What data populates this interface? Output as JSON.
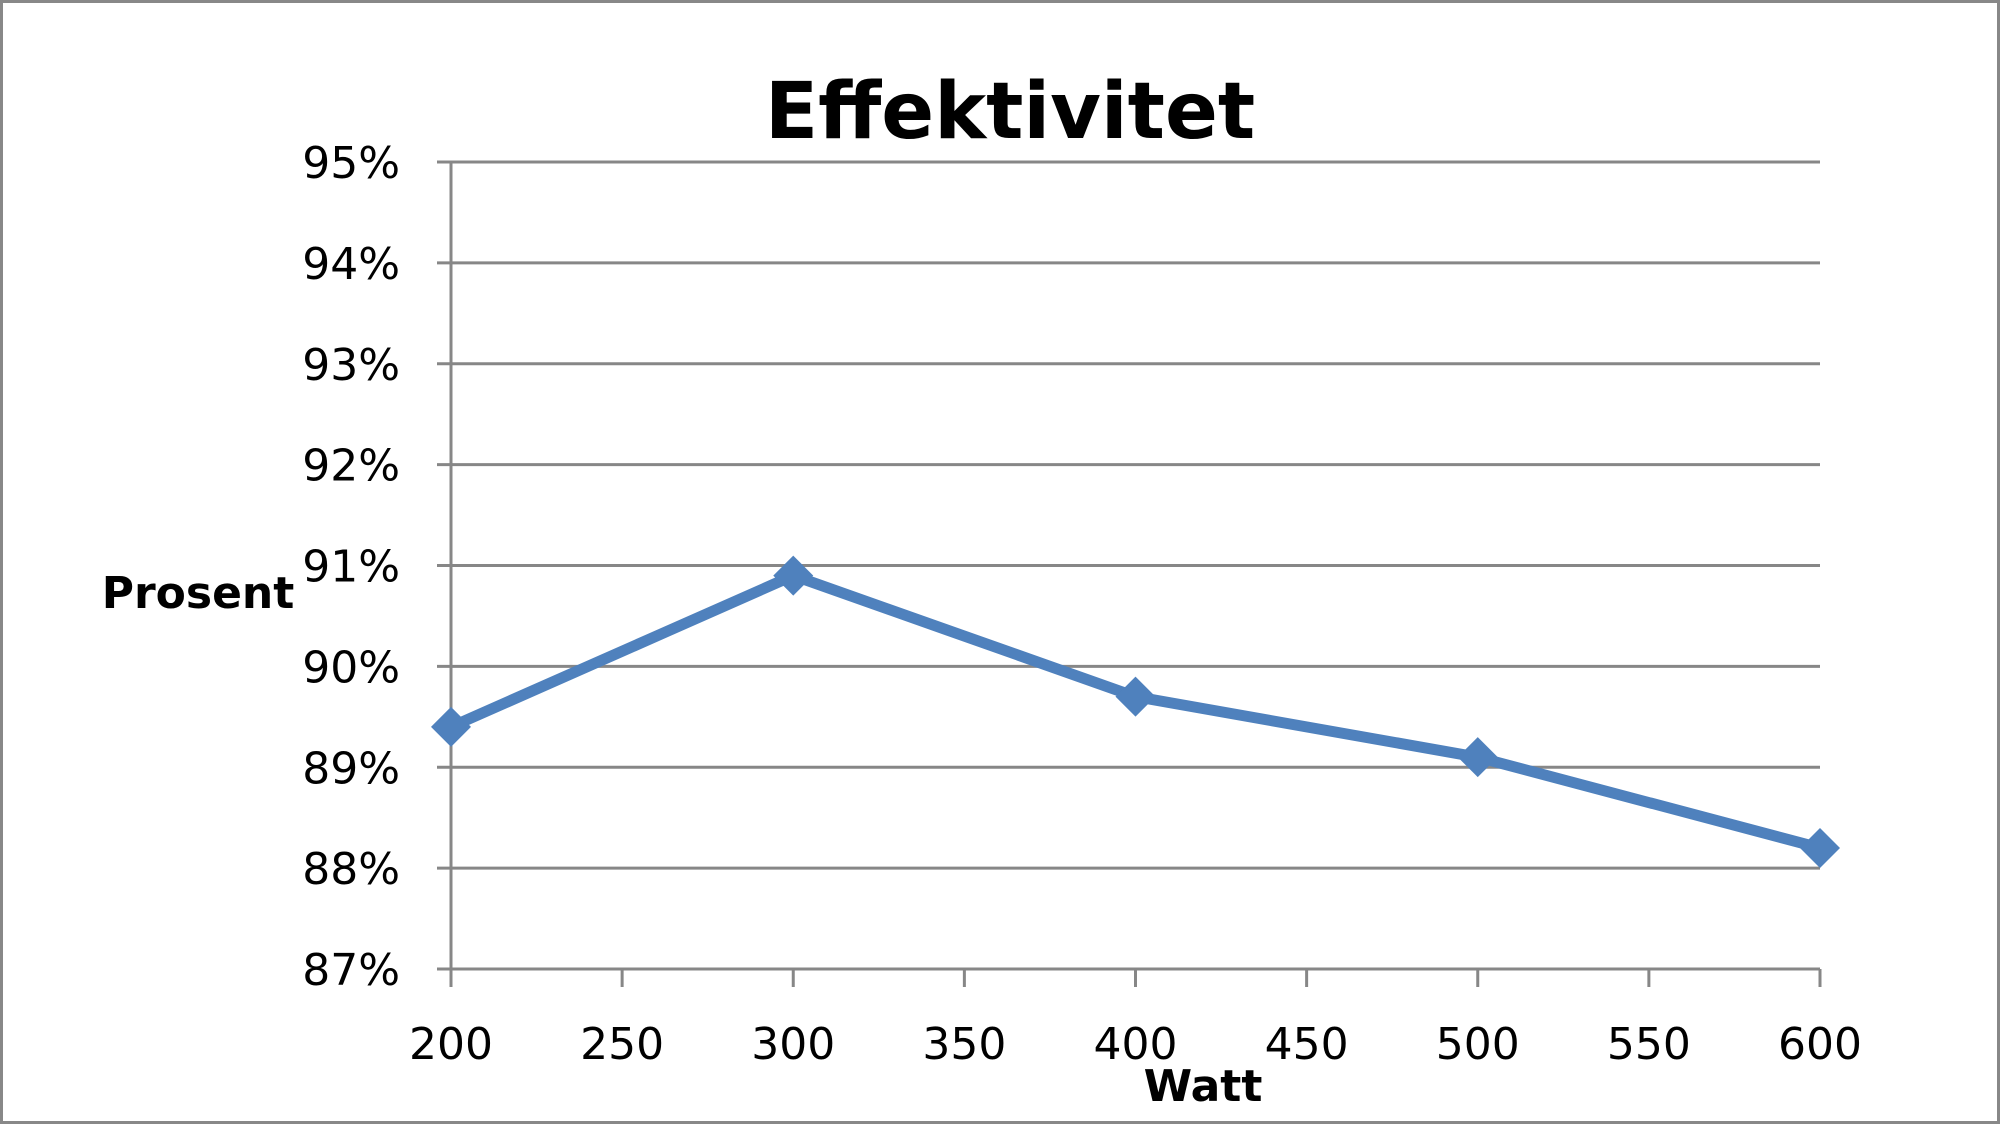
{
  "chart_data": {
    "type": "line",
    "title": "Effektivitet",
    "xlabel": "Watt",
    "ylabel": "Prosent",
    "xlim": [
      200,
      600
    ],
    "ylim": [
      87,
      95
    ],
    "x_ticks": [
      200,
      250,
      300,
      350,
      400,
      450,
      500,
      550,
      600
    ],
    "y_ticks": [
      87,
      88,
      89,
      90,
      91,
      92,
      93,
      94,
      95
    ],
    "y_tick_format": "percent",
    "grid": "horizontal",
    "legend": "none",
    "colors": {
      "series": "#4f81bd",
      "grid": "#878787",
      "axis": "#878787",
      "text": "#000000"
    },
    "series": [
      {
        "x": [
          200,
          300,
          400,
          500,
          600
        ],
        "values": [
          89.4,
          90.9,
          89.7,
          89.1,
          88.2
        ],
        "marker": "diamond"
      }
    ]
  }
}
